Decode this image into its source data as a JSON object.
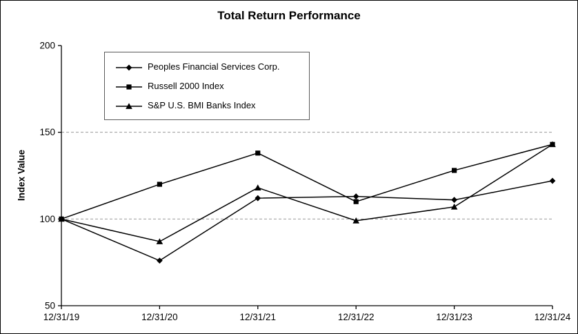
{
  "chart_data": {
    "type": "line",
    "title": "Total Return Performance",
    "ylabel": "Index Value",
    "categories": [
      "12/31/19",
      "12/31/20",
      "12/31/21",
      "12/31/22",
      "12/31/23",
      "12/31/24"
    ],
    "yticks": [
      50,
      100,
      150,
      200
    ],
    "ylim": [
      50,
      200
    ],
    "gridlines_y": [
      100,
      150
    ],
    "grid_on": true,
    "legend_position": "top-left-inside",
    "line_color": "#000000",
    "grid_color": "#9a9a9a",
    "series": [
      {
        "name": "Peoples Financial Services Corp.",
        "marker": "diamond",
        "values": [
          100,
          76,
          112,
          113,
          111,
          122
        ]
      },
      {
        "name": "Russell 2000 Index",
        "marker": "square",
        "values": [
          100,
          120,
          138,
          110,
          128,
          143
        ]
      },
      {
        "name": "S&P U.S. BMI Banks Index",
        "marker": "triangle",
        "values": [
          100,
          87,
          118,
          99,
          107,
          143
        ]
      }
    ]
  }
}
